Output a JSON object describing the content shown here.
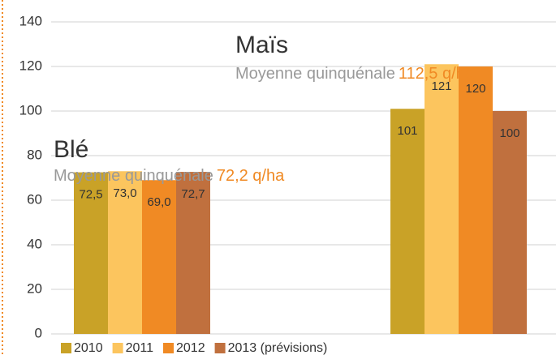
{
  "chart_data": {
    "type": "bar",
    "categories": [
      "Blé",
      "Maïs"
    ],
    "average_label": "Moyenne quinquénale",
    "averages": [
      "72,2 q/ha",
      "112,5 q/ha"
    ],
    "series": [
      {
        "name": "2010",
        "color": "#c9a227",
        "values": [
          72.5,
          101
        ],
        "value_labels": [
          "72,5",
          "101"
        ]
      },
      {
        "name": "2011",
        "color": "#fcc55e",
        "values": [
          73,
          121
        ],
        "value_labels": [
          "73,0",
          "121"
        ]
      },
      {
        "name": "2012",
        "color": "#f08a24",
        "values": [
          69,
          120
        ],
        "value_labels": [
          "69,0",
          "120"
        ]
      },
      {
        "name": "2013 (prévisions)",
        "color": "#c0703e",
        "values": [
          72.7,
          100
        ],
        "value_labels": [
          "72,7",
          "100"
        ]
      }
    ],
    "ylim": [
      0,
      140
    ],
    "yticks": [
      0,
      20,
      40,
      60,
      80,
      100,
      120,
      140
    ],
    "grid": true
  }
}
